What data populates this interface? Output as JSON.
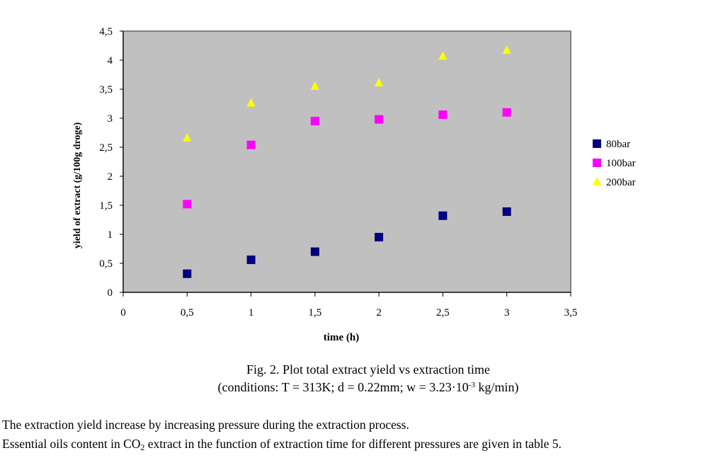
{
  "chart_data": {
    "type": "scatter",
    "title": "",
    "xlabel": "time (h)",
    "ylabel": "yield of extract  (g/100g droge)",
    "xlim": [
      0,
      3.5
    ],
    "ylim": [
      0,
      4.5
    ],
    "xticks": [
      0,
      0.5,
      1,
      1.5,
      2,
      2.5,
      3,
      3.5
    ],
    "xtick_labels": [
      "0",
      "0,5",
      "1",
      "1,5",
      "2",
      "2,5",
      "3",
      "3,5"
    ],
    "yticks": [
      0,
      0.5,
      1,
      1.5,
      2,
      2.5,
      3,
      3.5,
      4,
      4.5
    ],
    "ytick_labels": [
      "0",
      "0,5",
      "1",
      "1,5",
      "2",
      "2,5",
      "3",
      "3,5",
      "4",
      "4,5"
    ],
    "grid": false,
    "legend_position": "right",
    "plot_background": "#c0c0c0",
    "x": [
      0.5,
      1,
      1.5,
      2,
      2.5,
      3
    ],
    "series": [
      {
        "name": "80bar",
        "marker": "square",
        "color": "#000080",
        "values": [
          0.32,
          0.56,
          0.7,
          0.95,
          1.32,
          1.39
        ]
      },
      {
        "name": "100bar",
        "marker": "square",
        "color": "#ff00ff",
        "values": [
          1.52,
          2.54,
          2.95,
          2.98,
          3.06,
          3.1
        ]
      },
      {
        "name": "200bar",
        "marker": "triangle",
        "color": "#ffff00",
        "values": [
          2.66,
          3.26,
          3.55,
          3.61,
          4.07,
          4.17
        ]
      }
    ]
  },
  "caption": {
    "line1": "Fig. 2. Plot total extract yield vs extraction time",
    "line2_a": "(conditions: T = 313K; d = 0.22mm; w = 3.23·10",
    "line2_sup": "-3",
    "line2_b": " kg/min)"
  },
  "body": {
    "line1": "The extraction yield increase by increasing pressure during the extraction process.",
    "line2_a": "Essential oils content in CO",
    "line2_sub": "2",
    "line2_b": " extract in the function of extraction time for different pressures are given in table 5."
  }
}
